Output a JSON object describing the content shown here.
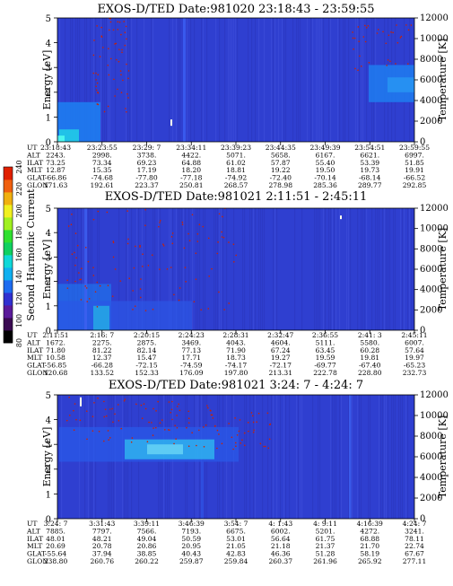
{
  "chart_data": [
    {
      "type": "heatmap",
      "title": "EXOS-D/TED   Date:981020  23:18:43 - 23:59:55",
      "ylabel": "Energy [eV]",
      "y2label": "Temperature [K]",
      "ylim": [
        0,
        5
      ],
      "y2lim": [
        0,
        12000
      ],
      "yticks": [
        "0",
        "1",
        "2",
        "3",
        "4",
        "5"
      ],
      "y2ticks": [
        "0",
        "2000",
        "4000",
        "6000",
        "8000",
        "10000",
        "12000"
      ],
      "table_labels": [
        "UT",
        "ALT",
        "ILAT",
        "MLT",
        "GLAT",
        "GLON"
      ],
      "columns": [
        [
          "23:18:43",
          "2243.",
          "73.25",
          "12.87",
          "-66.86",
          "171.63"
        ],
        [
          "23:23:55",
          "2998.",
          "73.34",
          "15.35",
          "-74.68",
          "192.61"
        ],
        [
          "23:29: 7",
          "3738.",
          "69.23",
          "17.19",
          "-77.80",
          "223.37"
        ],
        [
          "23:34:11",
          "4422.",
          "64.88",
          "18.20",
          "-77.18",
          "250.81"
        ],
        [
          "23:39:23",
          "5071.",
          "61.02",
          "18.81",
          "-74.92",
          "268.57"
        ],
        [
          "23:44:35",
          "5658.",
          "57.87",
          "19.22",
          "-72.40",
          "278.98"
        ],
        [
          "23:49:39",
          "6167.",
          "55.40",
          "19.50",
          "-70.14",
          "285.36"
        ],
        [
          "23:54:51",
          "6621.",
          "53.39",
          "19.73",
          "-68.14",
          "289.77"
        ],
        [
          "23:59:55",
          "6997.",
          "51.85",
          "19.91",
          "-66.52",
          "292.85"
        ]
      ]
    },
    {
      "type": "heatmap",
      "title": "EXOS-D/TED   Date:981021   2:11:51 - 2:45:11",
      "ylabel": "Energy [eV]",
      "y2label": "Temperature [K]",
      "ylim": [
        0,
        5
      ],
      "y2lim": [
        0,
        12000
      ],
      "yticks": [
        "0",
        "1",
        "2",
        "3",
        "4",
        "5"
      ],
      "y2ticks": [
        "0",
        "2000",
        "4000",
        "6000",
        "8000",
        "10000",
        "12000"
      ],
      "table_labels": [
        "UT",
        "ALT",
        "ILAT",
        "MLT",
        "GLAT",
        "GLON"
      ],
      "columns": [
        [
          "2:11:51",
          "1672.",
          "71.80",
          "10.58",
          "-56.85",
          "120.68"
        ],
        [
          "2:16: 7",
          "2275.",
          "81.22",
          "12.37",
          "-66.28",
          "133.52"
        ],
        [
          "2:20:15",
          "2875.",
          "82.14",
          "15.47",
          "-72.15",
          "152.33"
        ],
        [
          "2:24:23",
          "3469.",
          "77.13",
          "17.71",
          "-74.59",
          "176.09"
        ],
        [
          "2:28:31",
          "4043.",
          "71.90",
          "18.73",
          "-74.17",
          "197.80"
        ],
        [
          "2:32:47",
          "4604.",
          "67.24",
          "19.27",
          "-72.17",
          "213.31"
        ],
        [
          "2:36:55",
          "5111.",
          "63.45",
          "19.59",
          "-69.77",
          "222.78"
        ],
        [
          "2:41: 3",
          "5580.",
          "60.28",
          "19.81",
          "-67.40",
          "228.80"
        ],
        [
          "2:45:11",
          "6007.",
          "57.64",
          "19.97",
          "-65.23",
          "232.73"
        ]
      ]
    },
    {
      "type": "heatmap",
      "title": "EXOS-D/TED   Date:981021   3:24: 7 - 4:24: 7",
      "ylabel": "Energy [eV]",
      "y2label": "Temperature [K]",
      "ylim": [
        0,
        5
      ],
      "y2lim": [
        0,
        12000
      ],
      "yticks": [
        "0",
        "1",
        "2",
        "3",
        "4",
        "5"
      ],
      "y2ticks": [
        "0",
        "2000",
        "4000",
        "6000",
        "8000",
        "10000",
        "12000"
      ],
      "table_labels": [
        "UT",
        "ALT",
        "ILAT",
        "MLT",
        "GLAT",
        "GLON"
      ],
      "columns": [
        [
          "3:24: 7",
          "7885.",
          "48.01",
          "20.69",
          "-55.64",
          "238.80"
        ],
        [
          "3:31:43",
          "7797.",
          "48.21",
          "20.78",
          "37.94",
          "260.76"
        ],
        [
          "3:39:11",
          "7566.",
          "49.04",
          "20.86",
          "38.85",
          "260.22"
        ],
        [
          "3:46:39",
          "7193.",
          "50.59",
          "20.95",
          "40.43",
          "259.87"
        ],
        [
          "3:54: 7",
          "6675.",
          "53.01",
          "21.05",
          "42.83",
          "259.84"
        ],
        [
          "4: 1:43",
          "6002.",
          "56.64",
          "21.18",
          "46.36",
          "260.37"
        ],
        [
          "4: 9:11",
          "5201.",
          "61.75",
          "21.37",
          "51.28",
          "261.96"
        ],
        [
          "4:16:39",
          "4272.",
          "68.88",
          "21.70",
          "58.19",
          "265.92"
        ],
        [
          "4:24: 7",
          "3241.",
          "78.11",
          "22.74",
          "67.67",
          "277.11"
        ]
      ]
    }
  ],
  "colorbar": {
    "label": "Second Harmonic Current",
    "ticks": [
      "80",
      "100",
      "120",
      "140",
      "160",
      "180",
      "200",
      "220",
      "240"
    ],
    "range": [
      80,
      240
    ]
  },
  "colors": {
    "background_blue": "#3333cc",
    "plot_blue": "#2f3fd0",
    "enhancement_blue": "#1e7cf0",
    "cyan": "#22d6e6",
    "dots_red": "#cc2200"
  }
}
